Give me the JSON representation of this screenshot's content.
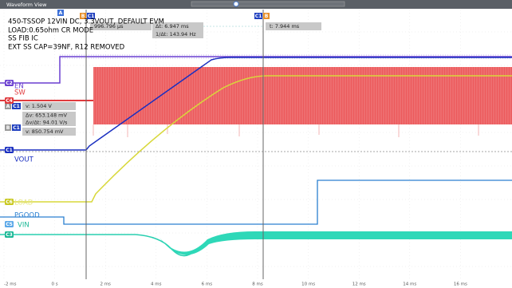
{
  "window_title": "Waveform View",
  "annotation": [
    "450-TSSOP 12VIN DC, 3.3VOUT, DEFAULT EVM",
    "LOAD:0.65ohm CR MODE",
    "SS FIB IC",
    "EXT SS CAP=39NF, R12 REMOVED"
  ],
  "cursor_readouts": {
    "top": [
      "996.796 µs",
      "Δt: 6.947 ms",
      "1/Δt: 143.94 Hz",
      "t: 7.944 ms"
    ],
    "left": [
      "v: 1.504 V",
      "Δv: 653.148 mV",
      "Δv/Δt: 94.01 V/s",
      "v: 850.754 mV"
    ]
  },
  "cursor_tags": {
    "top": [
      "A",
      "B",
      "C1",
      "C1",
      "B"
    ],
    "left": [
      "A",
      "C1",
      "B",
      "C1"
    ]
  },
  "channels": [
    {
      "badge": "C2",
      "label": "EN"
    },
    {
      "badge": "C4",
      "label": "SW"
    },
    {
      "badge": "C1",
      "label": "VOUT"
    },
    {
      "badge": "C6",
      "label": "LOAD"
    },
    {
      "badge": "C5",
      "label": "PGOOD"
    },
    {
      "badge": "C3",
      "label": "VIN"
    }
  ],
  "x_axis_labels": [
    "-2 ms",
    "0 s",
    "2 ms",
    "4 ms",
    "6 ms",
    "8 ms",
    "10 ms",
    "12 ms",
    "14 ms",
    "16 ms"
  ]
}
